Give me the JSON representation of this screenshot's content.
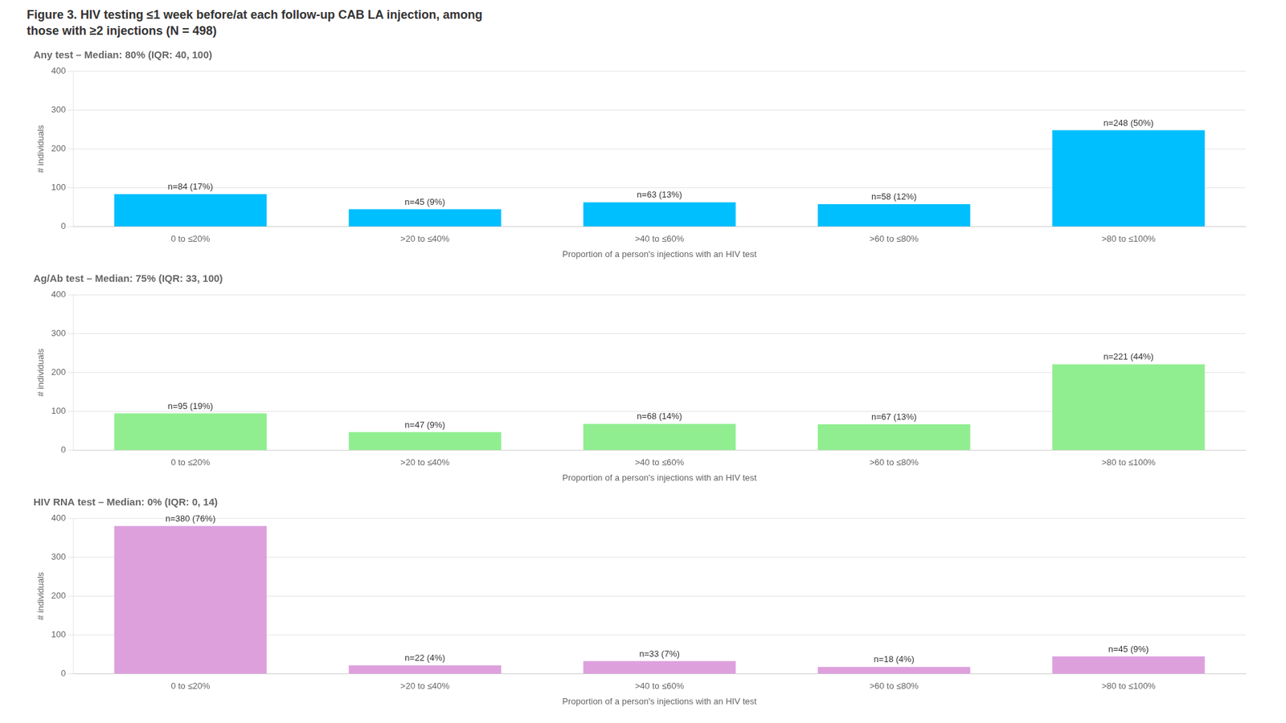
{
  "chart_data": [
    {
      "type": "bar",
      "title": [
        "Figure 3. HIV testing ≤1 week before/at each follow-up CAB LA injection, among",
        "those with ≥2 injections (N = 498)"
      ],
      "subtitle": "Any test – Median: 80% (IQR: 40, 100)",
      "categories": [
        "0 to ≤20%",
        ">20 to ≤40%",
        ">40 to ≤60%",
        ">60 to ≤80%",
        ">80 to ≤100%"
      ],
      "values": [
        84,
        45,
        63,
        58,
        248
      ],
      "value_labels": [
        "n=84 (17%)",
        "n=45 (9%)",
        "n=63 (13%)",
        "n=58 (12%)",
        "n=248 (50%)"
      ],
      "color": "#00BFFF",
      "xlabel": "Proportion of a person's injections with an HIV test",
      "ylabel": "# individuals",
      "ylim": [
        0,
        400
      ],
      "yticks": [
        0,
        100,
        200,
        300,
        400
      ],
      "grid": true
    },
    {
      "type": "bar",
      "subtitle": "Ag/Ab test – Median: 75% (IQR: 33, 100)",
      "categories": [
        "0 to ≤20%",
        ">20 to ≤40%",
        ">40 to ≤60%",
        ">60 to ≤80%",
        ">80 to ≤100%"
      ],
      "values": [
        95,
        47,
        68,
        67,
        221
      ],
      "value_labels": [
        "n=95 (19%)",
        "n=47 (9%)",
        "n=68 (14%)",
        "n=67 (13%)",
        "n=221 (44%)"
      ],
      "color": "#90EE90",
      "xlabel": "Proportion of a person's injections with an HIV test",
      "ylabel": "# individuals",
      "ylim": [
        0,
        400
      ],
      "yticks": [
        0,
        100,
        200,
        300,
        400
      ],
      "grid": true
    },
    {
      "type": "bar",
      "subtitle": "HIV RNA test – Median: 0% (IQR: 0, 14)",
      "categories": [
        "0 to ≤20%",
        ">20 to ≤40%",
        ">40 to ≤60%",
        ">60 to ≤80%",
        ">80 to ≤100%"
      ],
      "values": [
        380,
        22,
        33,
        18,
        45
      ],
      "value_labels": [
        "n=380 (76%)",
        "n=22 (4%)",
        "n=33 (7%)",
        "n=18 (4%)",
        "n=45 (9%)"
      ],
      "color": "#DDA0DD",
      "xlabel": "Proportion of a person's injections with an HIV test",
      "ylabel": "# individuals",
      "ylim": [
        0,
        400
      ],
      "yticks": [
        0,
        100,
        200,
        300,
        400
      ],
      "grid": true
    }
  ]
}
